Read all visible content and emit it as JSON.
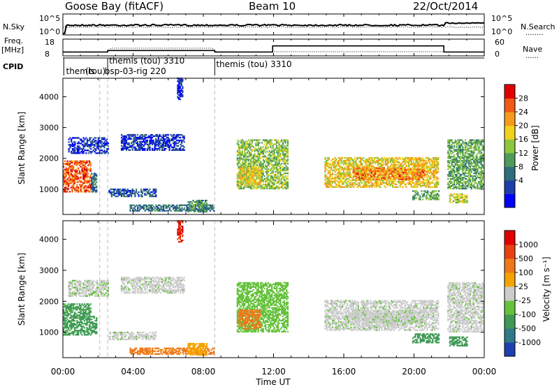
{
  "header": {
    "station": "Goose Bay (fitACF)",
    "beam": "Beam 10",
    "date": "22/Oct/2014"
  },
  "strip_labels": {
    "nsky": "N.Sky",
    "nsearch": "N.Search",
    "nsearch_marker": "........",
    "freq_line1": "Freq.",
    "freq_line2": "[MHz]",
    "nave": "Nave",
    "nave_marker": "......",
    "cpid": "CPID"
  },
  "strip_ticks": {
    "noise_left": [
      "10^5",
      "10^0"
    ],
    "noise_right": [
      "10^5",
      "10^0"
    ],
    "freq_left": [
      "18",
      "8"
    ],
    "freq_right": [
      "60",
      "0"
    ]
  },
  "cpid_labels": [
    {
      "text": "themis (tou) 3310",
      "start_hour": 2.55
    },
    {
      "text": "themis",
      "start_hour": 0.1
    },
    {
      "text": "(tou)",
      "start_hour": 1.2
    },
    {
      "text": "bsp-03-rig 220",
      "start_hour": 2.3
    },
    {
      "text": "themis (tou) 3310",
      "start_hour": 8.65
    }
  ],
  "axes": {
    "xlabel": "Time UT",
    "ylabel": "Slant Range [km]",
    "xticks": [
      "00:00",
      "04:00",
      "08:00",
      "12:00",
      "16:00",
      "20:00",
      "00:00"
    ],
    "yticks": [
      "1000",
      "2000",
      "3000",
      "4000"
    ],
    "xlim_hours": [
      0,
      24
    ],
    "ylim_km": [
      180,
      4600
    ]
  },
  "colorbars": {
    "power": {
      "label": "Power [dB]",
      "ticks": [
        "28",
        "24",
        "20",
        "16",
        "12",
        "8",
        "4"
      ],
      "colors": [
        "#0000ff",
        "#1e3fa8",
        "#2e6e7a",
        "#4f9a5a",
        "#8cc63f",
        "#f2d21c",
        "#f59a1a",
        "#f05a14",
        "#e00000"
      ]
    },
    "velocity": {
      "label": "Velocity [m s⁻¹]",
      "ticks": [
        "1000",
        "500",
        "100",
        "25",
        "-25",
        "-100",
        "-500",
        "-1000"
      ],
      "colors": [
        "#1f3fb0",
        "#2f7a86",
        "#3e9a55",
        "#66c23c",
        "#cccccc",
        "#f5a300",
        "#f07818",
        "#e84010",
        "#e00000"
      ]
    }
  },
  "chart_data": {
    "type": "heatmap",
    "title": "Goose Bay (fitACF)",
    "subtitle": "Beam 10",
    "xlabel": "Time UT",
    "ylabel": "Slant Range [km]",
    "x_range_hours": [
      0,
      24
    ],
    "y_range_km": [
      180,
      4600
    ],
    "frequency_mhz": [
      {
        "start": 0.0,
        "end": 2.55,
        "value": 10.5
      },
      {
        "start": 2.55,
        "end": 8.65,
        "value": 11.5
      },
      {
        "start": 8.65,
        "end": 11.95,
        "value": 10.5
      },
      {
        "start": 11.95,
        "end": 21.7,
        "value": 14.5
      },
      {
        "start": 21.7,
        "end": 24.0,
        "value": 10.5
      }
    ],
    "echo_regions": [
      {
        "t0": 0.0,
        "t1": 1.6,
        "r0": 900,
        "r1": 1900,
        "power_db": 26,
        "velocity": 150
      },
      {
        "t0": 0.3,
        "t1": 2.6,
        "r0": 2150,
        "r1": 2650,
        "power_db": 6,
        "velocity": 15
      },
      {
        "t0": 1.6,
        "t1": 1.9,
        "r0": 900,
        "r1": 1500,
        "power_db": 10,
        "velocity": 300
      },
      {
        "t0": 2.6,
        "t1": 5.3,
        "r0": 750,
        "r1": 1000,
        "power_db": 8,
        "velocity": 10
      },
      {
        "t0": 3.3,
        "t1": 6.9,
        "r0": 2250,
        "r1": 2750,
        "power_db": 6,
        "velocity": 10
      },
      {
        "t0": 3.8,
        "t1": 8.6,
        "r0": 280,
        "r1": 480,
        "power_db": 10,
        "velocity": -150
      },
      {
        "t0": 6.5,
        "t1": 6.8,
        "r0": 3900,
        "r1": 4600,
        "power_db": 5,
        "velocity": -1000
      },
      {
        "t0": 7.1,
        "t1": 8.2,
        "r0": 250,
        "r1": 650,
        "power_db": 12,
        "velocity": -60
      },
      {
        "t0": 9.9,
        "t1": 12.8,
        "r0": 1000,
        "r1": 2600,
        "power_db": 16,
        "velocity": 60
      },
      {
        "t0": 10.0,
        "t1": 11.2,
        "r0": 1100,
        "r1": 1700,
        "power_db": 20,
        "velocity": -250
      },
      {
        "t0": 14.9,
        "t1": 21.4,
        "r0": 1050,
        "r1": 2000,
        "power_db": 20,
        "velocity": 10
      },
      {
        "t0": 16.5,
        "t1": 20.6,
        "r0": 1300,
        "r1": 1700,
        "power_db": 24,
        "velocity": 10
      },
      {
        "t0": 19.9,
        "t1": 21.4,
        "r0": 650,
        "r1": 950,
        "power_db": 14,
        "velocity": 250
      },
      {
        "t0": 21.9,
        "t1": 24.0,
        "r0": 1000,
        "r1": 2600,
        "power_db": 14,
        "velocity": 10
      },
      {
        "t0": 22.0,
        "t1": 23.0,
        "r0": 550,
        "r1": 850,
        "power_db": 18,
        "velocity": 200
      }
    ]
  }
}
